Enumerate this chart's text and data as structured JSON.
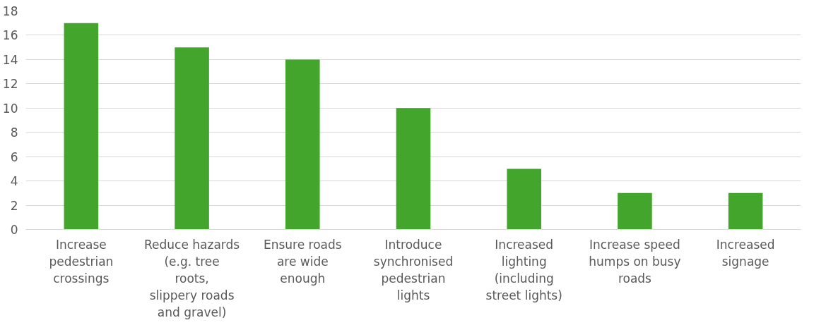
{
  "chart_data": {
    "type": "bar",
    "categories": [
      "Increase pedestrian crossings",
      "Reduce hazards (e.g. tree roots, slippery roads and gravel)",
      "Ensure roads are wide enough",
      "Introduce synchronised pedestrian lights",
      "Increased lighting (including street lights)",
      "Increase speed humps on busy roads",
      "Increased signage"
    ],
    "values": [
      17,
      15,
      14,
      10,
      5,
      3,
      3
    ],
    "color": "#43a52c",
    "ylim": [
      0,
      18
    ],
    "yticks": [
      0,
      2,
      4,
      6,
      8,
      10,
      12,
      14,
      16,
      18
    ],
    "grid": "y"
  }
}
